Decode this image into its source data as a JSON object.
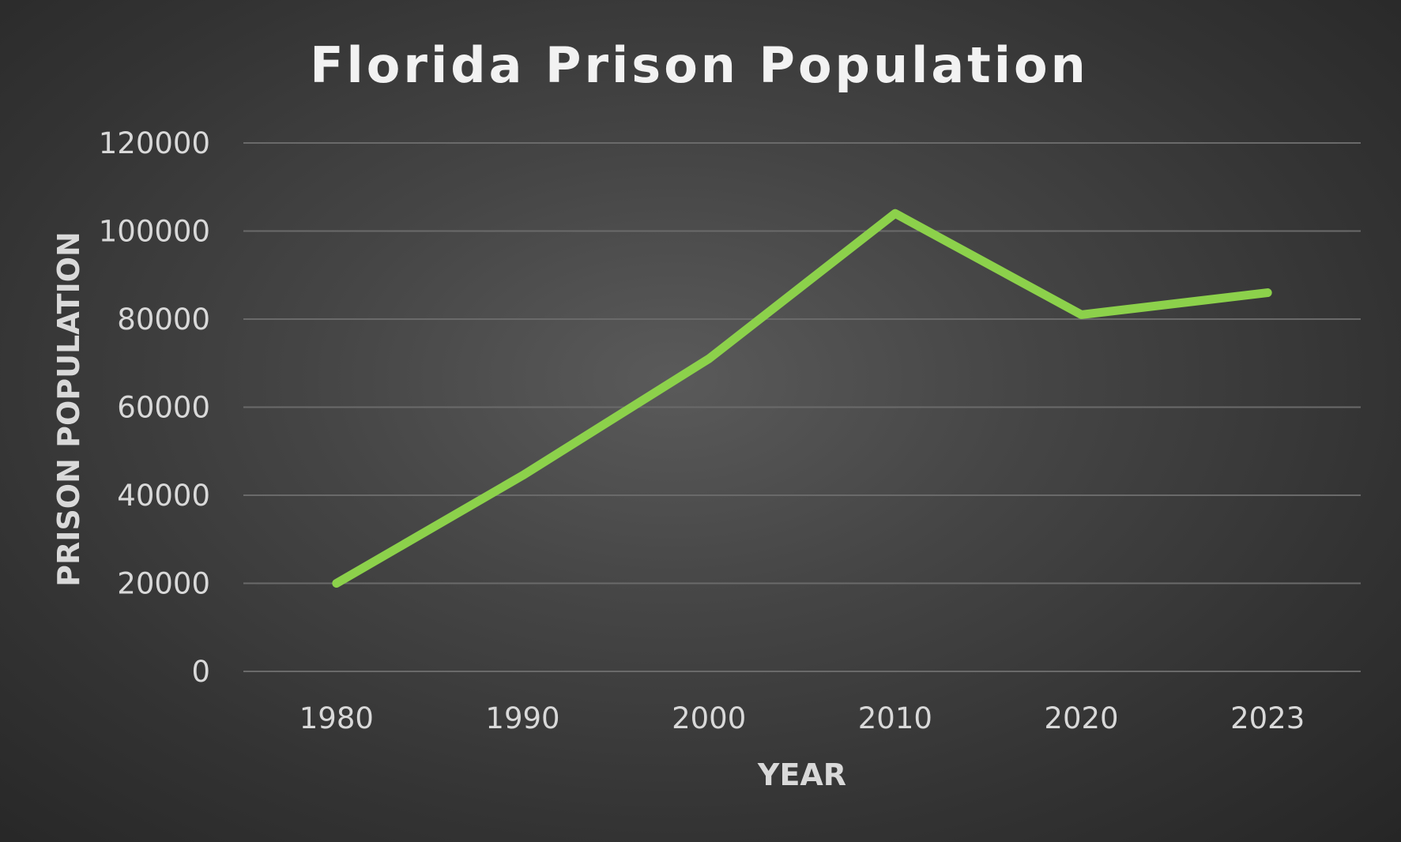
{
  "chart_data": {
    "type": "line",
    "title": "Florida Prison Population",
    "xlabel": "YEAR",
    "ylabel": "PRISON POPULATION",
    "categories": [
      "1980",
      "1990",
      "2000",
      "2010",
      "2020",
      "2023"
    ],
    "series": [
      {
        "values": [
          20000,
          44500,
          71000,
          104000,
          81000,
          86000
        ],
        "color": "#8cd14b"
      }
    ],
    "ylim": [
      0,
      120000
    ],
    "yticks": [
      "0",
      "20000",
      "40000",
      "60000",
      "80000",
      "100000",
      "120000"
    ],
    "grid": true,
    "legend": "none"
  }
}
